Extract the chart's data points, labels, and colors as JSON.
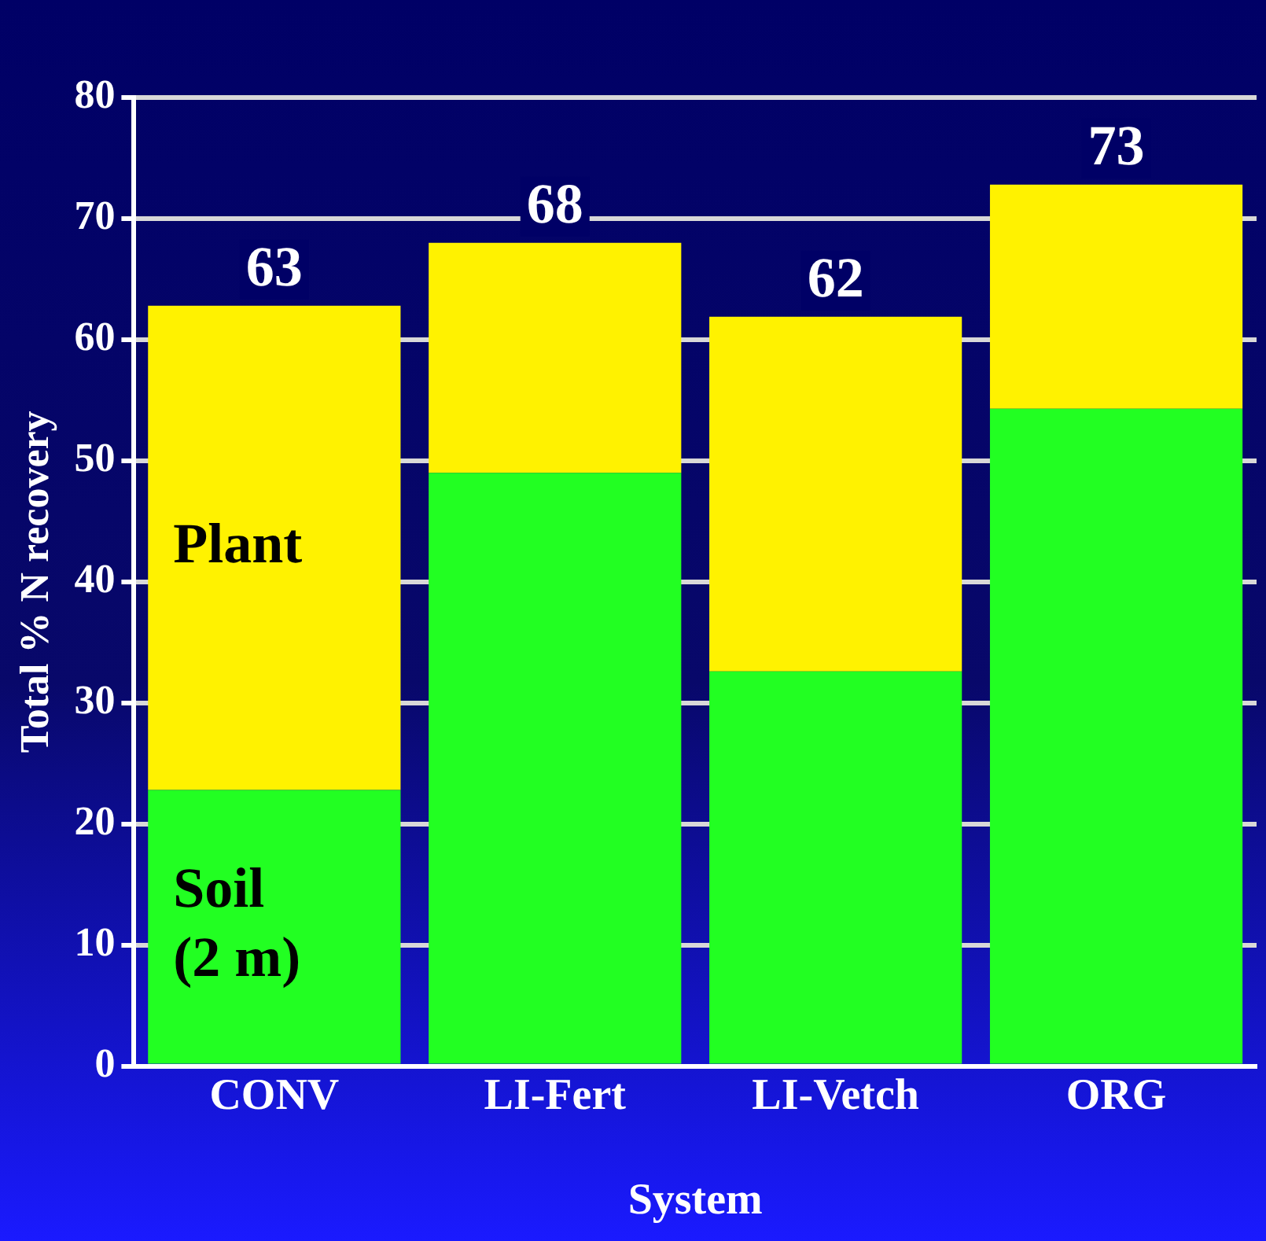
{
  "chart_data": {
    "type": "bar",
    "stacked": true,
    "xlabel": "System",
    "ylabel": "Total % N recovery",
    "categories": [
      "CONV",
      "LI-Fert",
      "LI-Vetch",
      "ORG"
    ],
    "series": [
      {
        "name": "Soil (2 m)",
        "color": "#22ff22",
        "values": [
          22.8,
          49,
          32.6,
          54.3
        ]
      },
      {
        "name": "Plant",
        "color": "#fff200",
        "values": [
          40,
          19,
          29.3,
          18.5
        ]
      }
    ],
    "totals": [
      "63",
      "68",
      "62",
      "73"
    ],
    "ylim": [
      0,
      80
    ],
    "yticks": [
      0,
      10,
      20,
      30,
      40,
      50,
      60,
      70,
      80
    ],
    "grid": "y"
  }
}
